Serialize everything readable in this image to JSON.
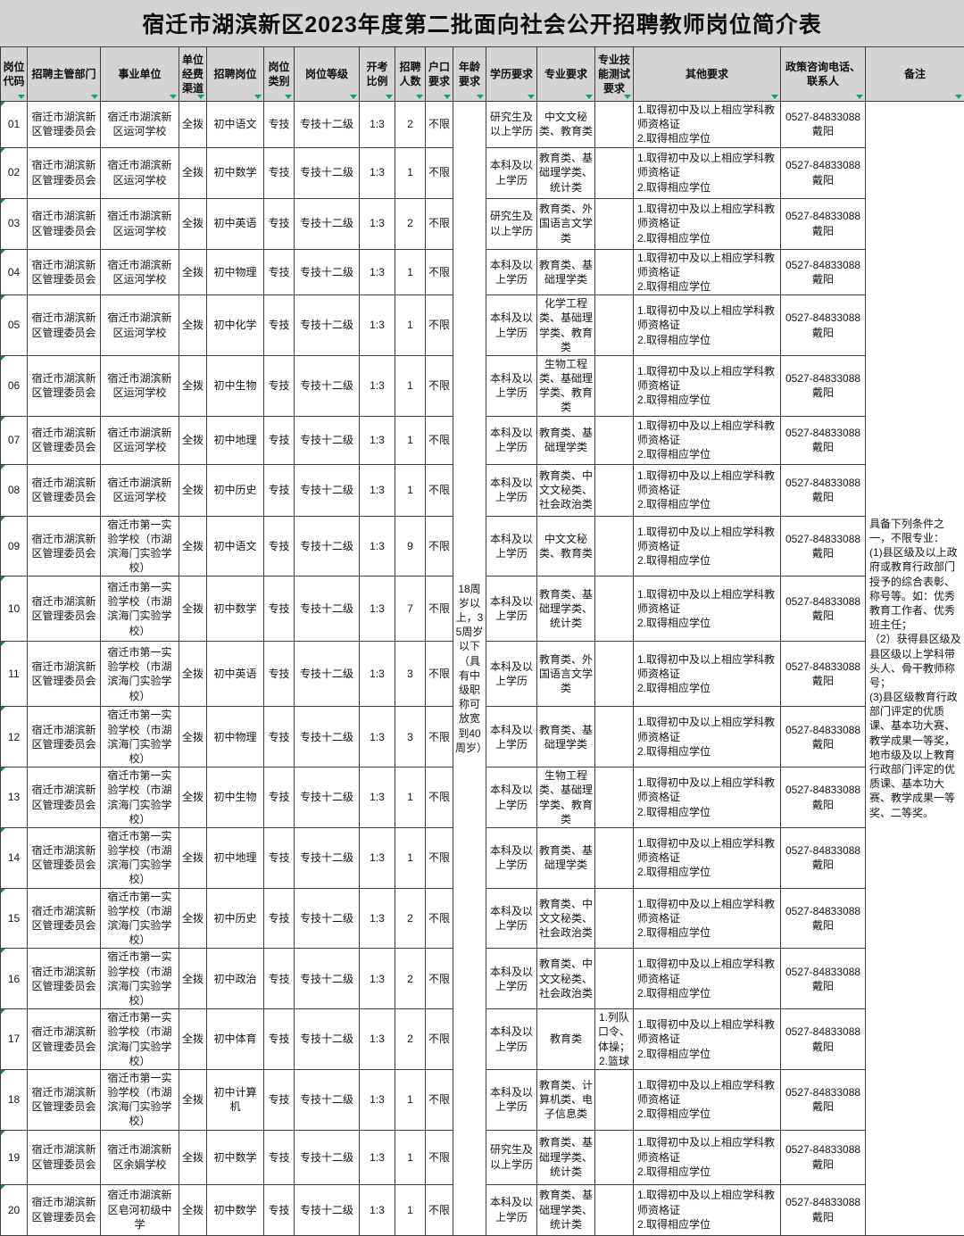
{
  "title": "宿迁市湖滨新区2023年度第二批面向社会公开招聘教师岗位简介表",
  "columns": [
    "岗位代码",
    "招聘主管部门",
    "事业单位",
    "单位经费渠道",
    "招聘岗位",
    "岗位类别",
    "岗位等级",
    "开考比例",
    "招聘人数",
    "户口要求",
    "年龄要求",
    "学历要求",
    "专业要求",
    "专业技能测试要求",
    "其他要求",
    "政策咨询电话、联系人",
    "备注"
  ],
  "shared": {
    "department": "宿迁市湖滨新区管理委员会",
    "funding": "全拨",
    "category": "专技",
    "grade": "专技十二级",
    "ratio": "1:3",
    "hukou": "不限",
    "age_requirement": "18周岁以上，35周岁以下（具有中级职称可放宽到40周岁）",
    "other_requirement": "1.取得初中及以上相应学科教师资格证\n2.取得相应学位",
    "contact": "0527-84833088\n戴阳",
    "remark": "具备下列条件之一，不限专业：\n(1)县区级及以上政府或教育行政部门授予的综合表彰、称号等。如：优秀教育工作者、优秀班主任；\n（2）获得县区级及县区级以上学科带头人、骨干教师称号；\n(3)县区级教育行政部门评定的优质课、基本功大赛、教学成果一等奖，地市级及以上教育行政部门评定的优质课、基本功大赛、教学成果一等奖、二等奖。",
    "filter_arrow_color": "#17a05c"
  },
  "rows": [
    {
      "code": "01",
      "unit": "宿迁市湖滨新区运河学校",
      "post": "初中语文",
      "count": "2",
      "edu": "研究生及以上学历",
      "major": "中文文秘类、教育类",
      "skill_test": ""
    },
    {
      "code": "02",
      "unit": "宿迁市湖滨新区运河学校",
      "post": "初中数学",
      "count": "1",
      "edu": "本科及以上学历",
      "major": "教育类、基础理学类、统计类",
      "skill_test": ""
    },
    {
      "code": "03",
      "unit": "宿迁市湖滨新区运河学校",
      "post": "初中英语",
      "count": "2",
      "edu": "研究生及以上学历",
      "major": "教育类、外国语言文学类",
      "skill_test": ""
    },
    {
      "code": "04",
      "unit": "宿迁市湖滨新区运河学校",
      "post": "初中物理",
      "count": "1",
      "edu": "本科及以上学历",
      "major": "教育类、基础理学类",
      "skill_test": ""
    },
    {
      "code": "05",
      "unit": "宿迁市湖滨新区运河学校",
      "post": "初中化学",
      "count": "1",
      "edu": "本科及以上学历",
      "major": "化学工程类、基础理学类、教育类",
      "skill_test": ""
    },
    {
      "code": "06",
      "unit": "宿迁市湖滨新区运河学校",
      "post": "初中生物",
      "count": "1",
      "edu": "本科及以上学历",
      "major": "生物工程类、基础理学类、教育类",
      "skill_test": ""
    },
    {
      "code": "07",
      "unit": "宿迁市湖滨新区运河学校",
      "post": "初中地理",
      "count": "1",
      "edu": "本科及以上学历",
      "major": "教育类、基础理学类",
      "skill_test": ""
    },
    {
      "code": "08",
      "unit": "宿迁市湖滨新区运河学校",
      "post": "初中历史",
      "count": "1",
      "edu": "本科及以上学历",
      "major": "教育类、中文文秘类、社会政治类",
      "skill_test": ""
    },
    {
      "code": "09",
      "unit": "宿迁市第一实验学校（市湖滨海门实验学校）",
      "post": "初中语文",
      "count": "9",
      "edu": "本科及以上学历",
      "major": "中文文秘类、教育类",
      "skill_test": ""
    },
    {
      "code": "10",
      "unit": "宿迁市第一实验学校（市湖滨海门实验学校）",
      "post": "初中数学",
      "count": "7",
      "edu": "本科及以上学历",
      "major": "教育类、基础理学类、统计类",
      "skill_test": ""
    },
    {
      "code": "11",
      "unit": "宿迁市第一实验学校（市湖滨海门实验学校）",
      "post": "初中英语",
      "count": "3",
      "edu": "本科及以上学历",
      "major": "教育类、外国语言文学类",
      "skill_test": ""
    },
    {
      "code": "12",
      "unit": "宿迁市第一实验学校（市湖滨海门实验学校）",
      "post": "初中物理",
      "count": "3",
      "edu": "本科及以上学历",
      "major": "教育类、基础理学类",
      "skill_test": ""
    },
    {
      "code": "13",
      "unit": "宿迁市第一实验学校（市湖滨海门实验学校）",
      "post": "初中生物",
      "count": "1",
      "edu": "本科及以上学历",
      "major": "生物工程类、基础理学类、教育类",
      "skill_test": ""
    },
    {
      "code": "14",
      "unit": "宿迁市第一实验学校（市湖滨海门实验学校）",
      "post": "初中地理",
      "count": "1",
      "edu": "本科及以上学历",
      "major": "教育类、基础理学类",
      "skill_test": ""
    },
    {
      "code": "15",
      "unit": "宿迁市第一实验学校（市湖滨海门实验学校）",
      "post": "初中历史",
      "count": "2",
      "edu": "本科及以上学历",
      "major": "教育类、中文文秘类、社会政治类",
      "skill_test": ""
    },
    {
      "code": "16",
      "unit": "宿迁市第一实验学校（市湖滨海门实验学校）",
      "post": "初中政治",
      "count": "2",
      "edu": "本科及以上学历",
      "major": "教育类、中文文秘类、社会政治类",
      "skill_test": ""
    },
    {
      "code": "17",
      "unit": "宿迁市第一实验学校（市湖滨海门实验学校）",
      "post": "初中体育",
      "count": "2",
      "edu": "本科及以上学历",
      "major": "教育类",
      "skill_test": "1.列队口令、体操；\n2.篮球"
    },
    {
      "code": "18",
      "unit": "宿迁市第一实验学校（市湖滨海门实验学校）",
      "post": "初中计算机",
      "count": "1",
      "edu": "本科及以上学历",
      "major": "教育类、计算机类、电子信息类",
      "skill_test": ""
    },
    {
      "code": "19",
      "unit": "宿迁市湖滨新区余娟学校",
      "post": "初中数学",
      "count": "1",
      "edu": "研究生及以上学历",
      "major": "教育类、基础理学类、统计类",
      "skill_test": ""
    },
    {
      "code": "20",
      "unit": "宿迁市湖滨新区皂河初级中学",
      "post": "初中数学",
      "count": "1",
      "edu": "本科及以上学历",
      "major": "教育类、基础理学类、统计类",
      "skill_test": ""
    }
  ]
}
